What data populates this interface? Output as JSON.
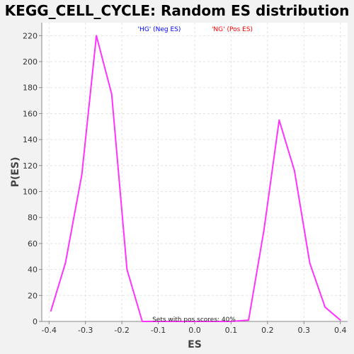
{
  "chart_data": {
    "type": "line",
    "title": "KEGG_CELL_CYCLE: Random ES distribution",
    "xlabel": "ES",
    "ylabel": "P(ES)",
    "xlim": [
      -0.42,
      0.42
    ],
    "ylim": [
      0,
      230
    ],
    "xticks": [
      "-0.4",
      "-0.3",
      "-0.2",
      "-0.1",
      "0.0",
      "0.1",
      "0.2",
      "0.3",
      "0.4"
    ],
    "xtick_values": [
      -0.4,
      -0.3,
      -0.2,
      -0.1,
      0.0,
      0.1,
      0.2,
      0.3,
      0.4
    ],
    "yticks": [
      "0",
      "20",
      "40",
      "60",
      "80",
      "100",
      "120",
      "140",
      "160",
      "180",
      "200",
      "220"
    ],
    "ytick_values": [
      0,
      20,
      40,
      60,
      80,
      100,
      120,
      140,
      160,
      180,
      200,
      220
    ],
    "grid": true,
    "legend": [
      {
        "label": "'HG' (Neg ES)",
        "color": "#0000ff"
      },
      {
        "label": "'NG' (Pos ES)",
        "color": "#ff0000"
      }
    ],
    "legend_position": "top-center",
    "annotation": "Sets with pos scores: 40%",
    "series": [
      {
        "color": "#ff33ff",
        "x": [
          -0.395,
          -0.355,
          -0.31,
          -0.27,
          -0.228,
          -0.186,
          -0.144,
          -0.1,
          -0.06,
          -0.02,
          0.02,
          0.06,
          0.1,
          0.148,
          0.19,
          0.232,
          0.274,
          0.316,
          0.358,
          0.4
        ],
        "y": [
          8,
          45,
          113,
          220,
          175,
          40,
          0,
          0,
          0,
          0,
          0,
          0,
          0,
          1,
          70,
          155,
          116,
          45,
          11,
          1
        ]
      }
    ]
  }
}
